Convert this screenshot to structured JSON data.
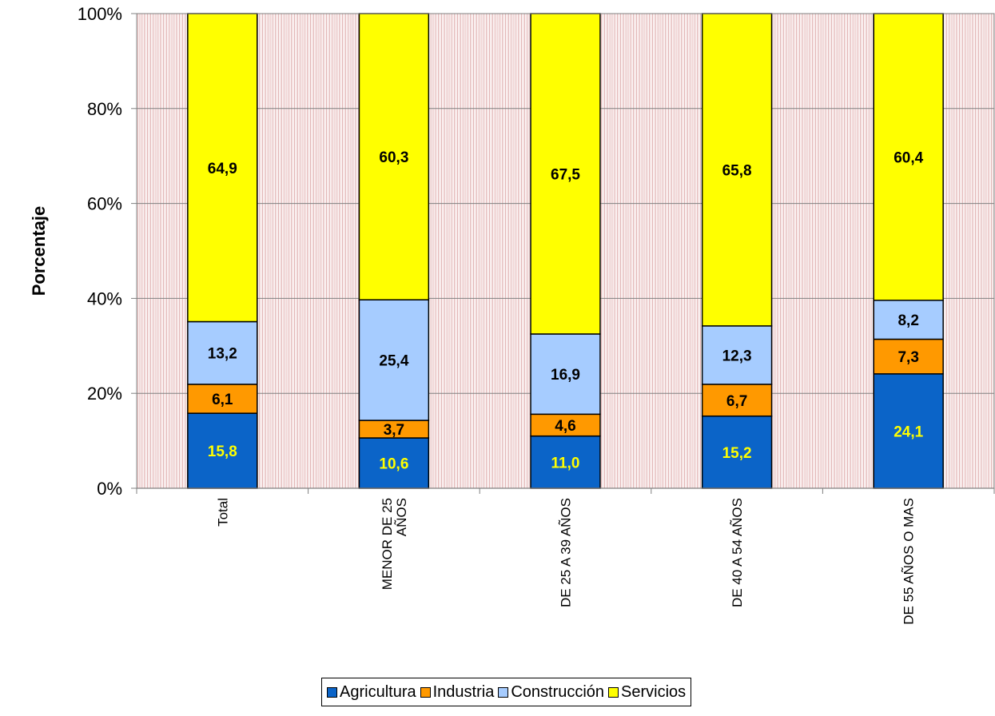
{
  "chart_data": {
    "type": "bar",
    "stacked": true,
    "percent_stacked": true,
    "ylabel": "Porcentaje",
    "xlabel": "",
    "ylim": [
      0,
      100
    ],
    "yticks": [
      "0%",
      "20%",
      "40%",
      "60%",
      "80%",
      "100%"
    ],
    "categories": [
      [
        "Total"
      ],
      [
        "MENOR DE 25",
        "AÑOS"
      ],
      [
        "DE 25  A 39 AÑOS"
      ],
      [
        "DE 40  A 54 AÑOS"
      ],
      [
        "DE 55 AÑOS O MAS"
      ]
    ],
    "series": [
      {
        "name": "Agricultura",
        "color": "#0b64c8",
        "label_color": "#ffff00",
        "values": [
          15.8,
          10.6,
          11.0,
          15.2,
          24.1
        ],
        "labels": [
          "15,8",
          "10,6",
          "11,0",
          "15,2",
          "24,1"
        ]
      },
      {
        "name": "Industria",
        "color": "#ff9900",
        "label_color": "#000000",
        "values": [
          6.1,
          3.7,
          4.6,
          6.7,
          7.3
        ],
        "labels": [
          "6,1",
          "3,7",
          "4,6",
          "6,7",
          "7,3"
        ]
      },
      {
        "name": "Construcción",
        "color": "#a6ccff",
        "label_color": "#000000",
        "values": [
          13.2,
          25.4,
          16.9,
          12.3,
          8.2
        ],
        "labels": [
          "13,2",
          "25,4",
          "16,9",
          "12,3",
          "8,2"
        ]
      },
      {
        "name": "Servicios",
        "color": "#ffff00",
        "label_color": "#000000",
        "values": [
          64.9,
          60.3,
          67.5,
          65.8,
          60.4
        ],
        "labels": [
          "64,9",
          "60,3",
          "67,5",
          "65,8",
          "60,4"
        ]
      }
    ],
    "grid": true,
    "legend_position": "bottom"
  }
}
